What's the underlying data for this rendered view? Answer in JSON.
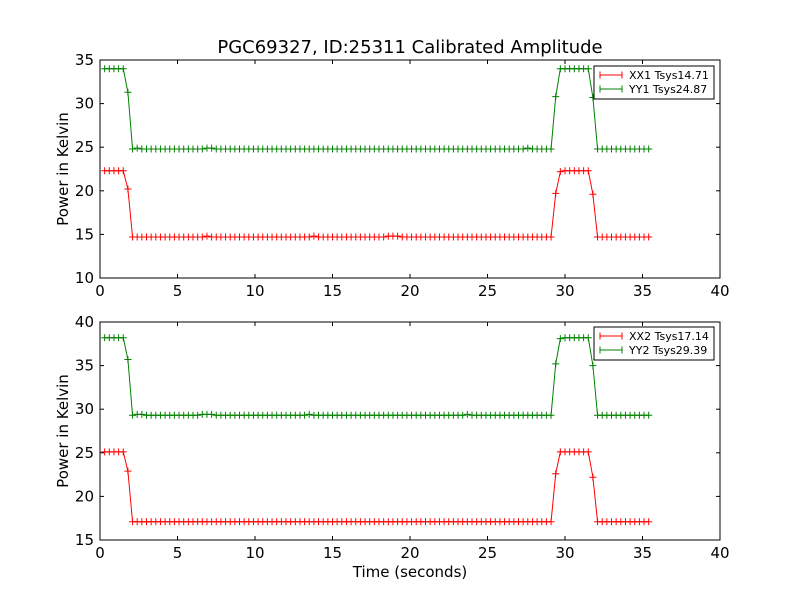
{
  "page": {
    "title": "PGC69327, ID:25311 Calibrated Amplitude"
  },
  "chart_data": [
    {
      "type": "line",
      "xlabel": "",
      "ylabel": "Power in Kelvin",
      "xlim": [
        0,
        40
      ],
      "ylim": [
        10,
        35
      ],
      "xticks": [
        0,
        5,
        10,
        15,
        20,
        25,
        30,
        35,
        40
      ],
      "yticks": [
        10,
        15,
        20,
        25,
        30,
        35
      ],
      "grid": false,
      "legend_position": "top-right",
      "series": [
        {
          "name": "XX1 Tsys14.71",
          "color": "#ff0000",
          "marker": "plus",
          "x": [
            0.3,
            0.6,
            0.9,
            1.2,
            1.5,
            1.8,
            2.1,
            2.4,
            2.7,
            3.0,
            3.3,
            3.6,
            3.9,
            4.2,
            4.5,
            4.8,
            5.1,
            5.4,
            5.7,
            6.0,
            6.3,
            6.6,
            6.9,
            7.2,
            7.5,
            7.8,
            8.1,
            8.4,
            8.7,
            9.0,
            9.3,
            9.6,
            9.9,
            10.2,
            10.5,
            10.8,
            11.1,
            11.4,
            11.7,
            12.0,
            12.3,
            12.6,
            12.9,
            13.2,
            13.5,
            13.8,
            14.1,
            14.4,
            14.7,
            15.0,
            15.3,
            15.6,
            15.9,
            16.2,
            16.5,
            16.8,
            17.1,
            17.4,
            17.7,
            18.0,
            18.3,
            18.6,
            18.9,
            19.2,
            19.5,
            19.8,
            20.1,
            20.4,
            20.7,
            21.0,
            21.3,
            21.6,
            21.9,
            22.2,
            22.5,
            22.8,
            23.1,
            23.4,
            23.7,
            24.0,
            24.3,
            24.6,
            24.9,
            25.2,
            25.5,
            25.8,
            26.1,
            26.4,
            26.7,
            27.0,
            27.3,
            27.6,
            27.9,
            28.2,
            28.5,
            28.8,
            29.1,
            29.4,
            29.7,
            30.0,
            30.3,
            30.6,
            30.9,
            31.2,
            31.5,
            31.8,
            32.1,
            32.4,
            32.7,
            33.0,
            33.3,
            33.6,
            33.9,
            34.2,
            34.5,
            34.8,
            35.1,
            35.4
          ],
          "y": [
            22.3,
            22.3,
            22.3,
            22.3,
            22.3,
            20.2,
            14.7,
            14.7,
            14.7,
            14.7,
            14.7,
            14.7,
            14.7,
            14.7,
            14.7,
            14.7,
            14.7,
            14.7,
            14.7,
            14.7,
            14.7,
            14.7,
            14.8,
            14.7,
            14.7,
            14.7,
            14.7,
            14.7,
            14.7,
            14.7,
            14.7,
            14.7,
            14.7,
            14.7,
            14.7,
            14.7,
            14.7,
            14.7,
            14.7,
            14.7,
            14.7,
            14.7,
            14.7,
            14.7,
            14.7,
            14.8,
            14.7,
            14.7,
            14.7,
            14.7,
            14.7,
            14.7,
            14.7,
            14.7,
            14.7,
            14.7,
            14.7,
            14.7,
            14.7,
            14.7,
            14.7,
            14.8,
            14.8,
            14.8,
            14.7,
            14.7,
            14.7,
            14.7,
            14.7,
            14.7,
            14.7,
            14.7,
            14.7,
            14.7,
            14.7,
            14.7,
            14.7,
            14.7,
            14.7,
            14.7,
            14.7,
            14.7,
            14.7,
            14.7,
            14.7,
            14.7,
            14.7,
            14.7,
            14.7,
            14.7,
            14.7,
            14.7,
            14.7,
            14.7,
            14.7,
            14.7,
            14.7,
            19.7,
            22.2,
            22.3,
            22.3,
            22.3,
            22.3,
            22.3,
            22.3,
            19.6,
            14.7,
            14.7,
            14.7,
            14.7,
            14.7,
            14.7,
            14.7,
            14.7,
            14.7,
            14.7,
            14.7,
            14.7
          ]
        },
        {
          "name": "YY1 Tsys24.87",
          "color": "#008000",
          "marker": "plus",
          "x": [
            0.3,
            0.6,
            0.9,
            1.2,
            1.5,
            1.8,
            2.1,
            2.4,
            2.7,
            3.0,
            3.3,
            3.6,
            3.9,
            4.2,
            4.5,
            4.8,
            5.1,
            5.4,
            5.7,
            6.0,
            6.3,
            6.6,
            6.9,
            7.2,
            7.5,
            7.8,
            8.1,
            8.4,
            8.7,
            9.0,
            9.3,
            9.6,
            9.9,
            10.2,
            10.5,
            10.8,
            11.1,
            11.4,
            11.7,
            12.0,
            12.3,
            12.6,
            12.9,
            13.2,
            13.5,
            13.8,
            14.1,
            14.4,
            14.7,
            15.0,
            15.3,
            15.6,
            15.9,
            16.2,
            16.5,
            16.8,
            17.1,
            17.4,
            17.7,
            18.0,
            18.3,
            18.6,
            18.9,
            19.2,
            19.5,
            19.8,
            20.1,
            20.4,
            20.7,
            21.0,
            21.3,
            21.6,
            21.9,
            22.2,
            22.5,
            22.8,
            23.1,
            23.4,
            23.7,
            24.0,
            24.3,
            24.6,
            24.9,
            25.2,
            25.5,
            25.8,
            26.1,
            26.4,
            26.7,
            27.0,
            27.3,
            27.6,
            27.9,
            28.2,
            28.5,
            28.8,
            29.1,
            29.4,
            29.7,
            30.0,
            30.3,
            30.6,
            30.9,
            31.2,
            31.5,
            31.8,
            32.1,
            32.4,
            32.7,
            33.0,
            33.3,
            33.6,
            33.9,
            34.2,
            34.5,
            34.8,
            35.1,
            35.4
          ],
          "y": [
            34.0,
            34.0,
            34.0,
            34.0,
            34.0,
            31.3,
            24.8,
            24.9,
            24.8,
            24.8,
            24.8,
            24.8,
            24.8,
            24.8,
            24.8,
            24.8,
            24.8,
            24.8,
            24.8,
            24.8,
            24.8,
            24.8,
            24.9,
            24.9,
            24.8,
            24.8,
            24.8,
            24.8,
            24.8,
            24.8,
            24.8,
            24.8,
            24.8,
            24.8,
            24.8,
            24.8,
            24.8,
            24.8,
            24.8,
            24.8,
            24.8,
            24.8,
            24.8,
            24.8,
            24.8,
            24.8,
            24.8,
            24.8,
            24.8,
            24.8,
            24.8,
            24.8,
            24.8,
            24.8,
            24.8,
            24.8,
            24.8,
            24.8,
            24.8,
            24.8,
            24.8,
            24.8,
            24.8,
            24.8,
            24.8,
            24.8,
            24.8,
            24.8,
            24.8,
            24.8,
            24.8,
            24.8,
            24.8,
            24.8,
            24.8,
            24.8,
            24.8,
            24.8,
            24.8,
            24.8,
            24.8,
            24.8,
            24.8,
            24.8,
            24.8,
            24.8,
            24.8,
            24.8,
            24.8,
            24.8,
            24.8,
            24.9,
            24.8,
            24.8,
            24.8,
            24.8,
            24.8,
            30.8,
            34.0,
            34.0,
            34.0,
            34.0,
            34.0,
            34.0,
            34.0,
            30.7,
            24.8,
            24.8,
            24.8,
            24.8,
            24.8,
            24.8,
            24.8,
            24.8,
            24.8,
            24.8,
            24.8,
            24.8
          ]
        }
      ]
    },
    {
      "type": "line",
      "xlabel": "Time (seconds)",
      "ylabel": "Power in Kelvin",
      "xlim": [
        0,
        40
      ],
      "ylim": [
        15,
        40
      ],
      "xticks": [
        0,
        5,
        10,
        15,
        20,
        25,
        30,
        35,
        40
      ],
      "yticks": [
        15,
        20,
        25,
        30,
        35,
        40
      ],
      "grid": false,
      "legend_position": "top-right",
      "series": [
        {
          "name": "XX2 Tsys17.14",
          "color": "#ff0000",
          "marker": "plus",
          "x": [
            0.3,
            0.6,
            0.9,
            1.2,
            1.5,
            1.8,
            2.1,
            2.4,
            2.7,
            3.0,
            3.3,
            3.6,
            3.9,
            4.2,
            4.5,
            4.8,
            5.1,
            5.4,
            5.7,
            6.0,
            6.3,
            6.6,
            6.9,
            7.2,
            7.5,
            7.8,
            8.1,
            8.4,
            8.7,
            9.0,
            9.3,
            9.6,
            9.9,
            10.2,
            10.5,
            10.8,
            11.1,
            11.4,
            11.7,
            12.0,
            12.3,
            12.6,
            12.9,
            13.2,
            13.5,
            13.8,
            14.1,
            14.4,
            14.7,
            15.0,
            15.3,
            15.6,
            15.9,
            16.2,
            16.5,
            16.8,
            17.1,
            17.4,
            17.7,
            18.0,
            18.3,
            18.6,
            18.9,
            19.2,
            19.5,
            19.8,
            20.1,
            20.4,
            20.7,
            21.0,
            21.3,
            21.6,
            21.9,
            22.2,
            22.5,
            22.8,
            23.1,
            23.4,
            23.7,
            24.0,
            24.3,
            24.6,
            24.9,
            25.2,
            25.5,
            25.8,
            26.1,
            26.4,
            26.7,
            27.0,
            27.3,
            27.6,
            27.9,
            28.2,
            28.5,
            28.8,
            29.1,
            29.4,
            29.7,
            30.0,
            30.3,
            30.6,
            30.9,
            31.2,
            31.5,
            31.8,
            32.1,
            32.4,
            32.7,
            33.0,
            33.3,
            33.6,
            33.9,
            34.2,
            34.5,
            34.8,
            35.1,
            35.4
          ],
          "y": [
            25.1,
            25.1,
            25.1,
            25.1,
            25.1,
            22.9,
            17.1,
            17.1,
            17.1,
            17.1,
            17.1,
            17.1,
            17.1,
            17.1,
            17.1,
            17.1,
            17.1,
            17.1,
            17.1,
            17.1,
            17.1,
            17.1,
            17.1,
            17.1,
            17.1,
            17.1,
            17.1,
            17.1,
            17.1,
            17.1,
            17.1,
            17.1,
            17.1,
            17.1,
            17.1,
            17.1,
            17.1,
            17.1,
            17.1,
            17.1,
            17.1,
            17.1,
            17.1,
            17.1,
            17.1,
            17.1,
            17.1,
            17.1,
            17.1,
            17.1,
            17.1,
            17.1,
            17.1,
            17.1,
            17.1,
            17.1,
            17.1,
            17.1,
            17.1,
            17.1,
            17.1,
            17.1,
            17.1,
            17.1,
            17.1,
            17.1,
            17.1,
            17.1,
            17.1,
            17.1,
            17.1,
            17.1,
            17.1,
            17.1,
            17.1,
            17.1,
            17.1,
            17.1,
            17.1,
            17.1,
            17.1,
            17.1,
            17.1,
            17.1,
            17.1,
            17.1,
            17.1,
            17.1,
            17.1,
            17.1,
            17.1,
            17.1,
            17.1,
            17.1,
            17.1,
            17.1,
            17.1,
            22.6,
            25.1,
            25.1,
            25.1,
            25.1,
            25.1,
            25.1,
            25.1,
            22.2,
            17.1,
            17.1,
            17.1,
            17.1,
            17.1,
            17.1,
            17.1,
            17.1,
            17.1,
            17.1,
            17.1,
            17.1
          ]
        },
        {
          "name": "YY2 Tsys29.39",
          "color": "#008000",
          "marker": "plus",
          "x": [
            0.3,
            0.6,
            0.9,
            1.2,
            1.5,
            1.8,
            2.1,
            2.4,
            2.7,
            3.0,
            3.3,
            3.6,
            3.9,
            4.2,
            4.5,
            4.8,
            5.1,
            5.4,
            5.7,
            6.0,
            6.3,
            6.6,
            6.9,
            7.2,
            7.5,
            7.8,
            8.1,
            8.4,
            8.7,
            9.0,
            9.3,
            9.6,
            9.9,
            10.2,
            10.5,
            10.8,
            11.1,
            11.4,
            11.7,
            12.0,
            12.3,
            12.6,
            12.9,
            13.2,
            13.5,
            13.8,
            14.1,
            14.4,
            14.7,
            15.0,
            15.3,
            15.6,
            15.9,
            16.2,
            16.5,
            16.8,
            17.1,
            17.4,
            17.7,
            18.0,
            18.3,
            18.6,
            18.9,
            19.2,
            19.5,
            19.8,
            20.1,
            20.4,
            20.7,
            21.0,
            21.3,
            21.6,
            21.9,
            22.2,
            22.5,
            22.8,
            23.1,
            23.4,
            23.7,
            24.0,
            24.3,
            24.6,
            24.9,
            25.2,
            25.5,
            25.8,
            26.1,
            26.4,
            26.7,
            27.0,
            27.3,
            27.6,
            27.9,
            28.2,
            28.5,
            28.8,
            29.1,
            29.4,
            29.7,
            30.0,
            30.3,
            30.6,
            30.9,
            31.2,
            31.5,
            31.8,
            32.1,
            32.4,
            32.7,
            33.0,
            33.3,
            33.6,
            33.9,
            34.2,
            34.5,
            34.8,
            35.1,
            35.4
          ],
          "y": [
            38.2,
            38.2,
            38.2,
            38.2,
            38.2,
            35.7,
            29.3,
            29.4,
            29.4,
            29.3,
            29.3,
            29.3,
            29.3,
            29.3,
            29.3,
            29.3,
            29.3,
            29.3,
            29.3,
            29.3,
            29.3,
            29.4,
            29.4,
            29.4,
            29.3,
            29.3,
            29.3,
            29.3,
            29.3,
            29.3,
            29.3,
            29.3,
            29.3,
            29.3,
            29.3,
            29.3,
            29.3,
            29.3,
            29.3,
            29.3,
            29.3,
            29.3,
            29.3,
            29.3,
            29.4,
            29.3,
            29.3,
            29.3,
            29.3,
            29.3,
            29.3,
            29.3,
            29.3,
            29.3,
            29.3,
            29.3,
            29.3,
            29.3,
            29.3,
            29.3,
            29.3,
            29.3,
            29.3,
            29.3,
            29.3,
            29.3,
            29.3,
            29.3,
            29.3,
            29.3,
            29.3,
            29.3,
            29.3,
            29.3,
            29.3,
            29.3,
            29.3,
            29.3,
            29.4,
            29.3,
            29.3,
            29.3,
            29.3,
            29.3,
            29.3,
            29.3,
            29.3,
            29.3,
            29.3,
            29.3,
            29.3,
            29.3,
            29.3,
            29.3,
            29.3,
            29.3,
            29.3,
            35.2,
            38.1,
            38.2,
            38.2,
            38.2,
            38.2,
            38.2,
            38.2,
            35.0,
            29.3,
            29.3,
            29.3,
            29.3,
            29.3,
            29.3,
            29.3,
            29.3,
            29.3,
            29.3,
            29.3,
            29.3
          ]
        }
      ]
    }
  ]
}
